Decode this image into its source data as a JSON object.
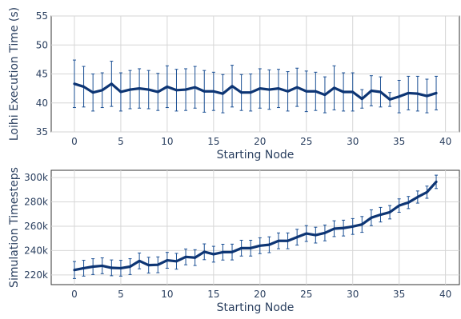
{
  "chart_data": [
    {
      "type": "line",
      "ylabel": "Loihi Execution Time (s)",
      "xlabel": "Starting Node",
      "xlim": [
        -2.5,
        41.5
      ],
      "ylim": [
        35,
        55
      ],
      "xticks": [
        0,
        5,
        10,
        15,
        20,
        25,
        30,
        35,
        40
      ],
      "yticks": [
        35,
        40,
        45,
        50,
        55
      ],
      "ytick_labels": [
        "35",
        "40",
        "45",
        "50",
        "55"
      ],
      "grid": true,
      "line_color": "#0d3574",
      "error_color": "#1a4f94",
      "x": [
        0,
        1,
        2,
        3,
        4,
        5,
        6,
        7,
        8,
        9,
        10,
        11,
        12,
        13,
        14,
        15,
        16,
        17,
        18,
        19,
        20,
        21,
        22,
        23,
        24,
        25,
        26,
        27,
        28,
        29,
        30,
        31,
        32,
        33,
        34,
        35,
        36,
        37,
        38,
        39
      ],
      "values": [
        43.3,
        42.8,
        41.8,
        42.2,
        43.3,
        41.9,
        42.3,
        42.5,
        42.3,
        41.9,
        42.8,
        42.2,
        42.3,
        42.7,
        42.0,
        42.0,
        41.6,
        42.9,
        41.8,
        41.8,
        42.5,
        42.3,
        42.5,
        42.0,
        42.7,
        42.0,
        42.0,
        41.4,
        42.6,
        41.9,
        41.9,
        40.7,
        42.1,
        41.9,
        40.6,
        41.1,
        41.7,
        41.6,
        41.2,
        41.7
      ],
      "error": [
        4.1,
        3.5,
        3.2,
        3.0,
        3.9,
        3.3,
        3.3,
        3.4,
        3.3,
        3.2,
        3.6,
        3.6,
        3.6,
        3.6,
        3.6,
        3.3,
        3.3,
        3.6,
        3.1,
        3.2,
        3.4,
        3.4,
        3.3,
        3.4,
        3.3,
        3.5,
        3.3,
        3.1,
        3.8,
        3.3,
        3.3,
        1.6,
        2.6,
        2.6,
        1.2,
        2.8,
        2.9,
        3.0,
        2.9,
        2.9
      ]
    },
    {
      "type": "line",
      "ylabel": "Simulation Timesteps",
      "xlabel": "Starting Node",
      "xlim": [
        -2.5,
        41.5
      ],
      "ylim": [
        212000,
        306000
      ],
      "xticks": [
        0,
        5,
        10,
        15,
        20,
        25,
        30,
        35,
        40
      ],
      "yticks": [
        220000,
        240000,
        260000,
        280000,
        300000
      ],
      "ytick_labels": [
        "220k",
        "240k",
        "260k",
        "280k",
        "300k"
      ],
      "grid": true,
      "line_color": "#0d3574",
      "error_color": "#1a4f94",
      "x": [
        0,
        1,
        2,
        3,
        4,
        5,
        6,
        7,
        8,
        9,
        10,
        11,
        12,
        13,
        14,
        15,
        16,
        17,
        18,
        19,
        20,
        21,
        22,
        23,
        24,
        25,
        26,
        27,
        28,
        29,
        30,
        31,
        32,
        33,
        34,
        35,
        36,
        37,
        38,
        39
      ],
      "values": [
        224000,
        225500,
        226800,
        227500,
        225800,
        225500,
        226800,
        231500,
        228000,
        228300,
        232000,
        231200,
        234800,
        234200,
        239000,
        237000,
        238700,
        238800,
        242000,
        242000,
        244000,
        244800,
        248000,
        248000,
        251000,
        254000,
        252700,
        254500,
        258000,
        258500,
        259800,
        261500,
        267000,
        269500,
        271500,
        277000,
        279500,
        284000,
        288000,
        296500
      ],
      "error": [
        7000,
        6500,
        6500,
        6500,
        6500,
        6500,
        6500,
        6500,
        6500,
        6500,
        6500,
        6500,
        6500,
        6500,
        6500,
        6500,
        6500,
        6500,
        6500,
        6500,
        6500,
        6500,
        6500,
        6500,
        6500,
        6500,
        6500,
        6500,
        6500,
        6500,
        6500,
        6500,
        6500,
        6000,
        5500,
        5500,
        5000,
        5000,
        5000,
        5500
      ]
    }
  ]
}
